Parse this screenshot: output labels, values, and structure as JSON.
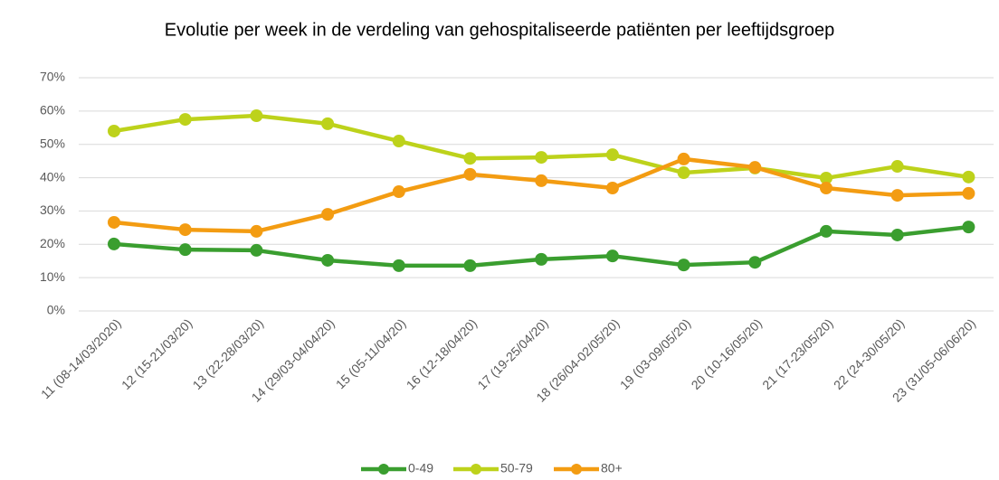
{
  "chart_data": {
    "type": "line",
    "title": "Evolutie per week in de verdeling van gehospitaliseerde patiënten per leeftijdsgroep",
    "categories": [
      "11 (08-14/03/2020)",
      "12 (15-21/03/20)",
      "13 (22-28/03/20)",
      "14 (29/03-04/04/20)",
      "15 (05-11/04/20)",
      "16 (12-18/04/20)",
      "17 (19-25/04/20)",
      "18 (26/04-02/05/20)",
      "19 (03-09/05/20)",
      "20 (10-16/05/20)",
      "21 (17-23/05/20)",
      "22 (24-30/05/20)",
      "23 (31/05-06/06/20)"
    ],
    "series": [
      {
        "name": "0-49",
        "color": "#3a9e2f",
        "values": [
          20.1,
          18.4,
          18.2,
          15.2,
          13.6,
          13.6,
          15.5,
          16.5,
          13.8,
          14.6,
          23.9,
          22.8,
          25.2
        ]
      },
      {
        "name": "50-79",
        "color": "#bdd21b",
        "values": [
          54,
          57.5,
          58.6,
          56.2,
          51,
          45.8,
          46.1,
          46.9,
          41.5,
          42.9,
          39.9,
          43.4,
          40.2
        ]
      },
      {
        "name": "80+",
        "color": "#f39c12",
        "values": [
          26.6,
          24.4,
          23.9,
          29,
          35.8,
          41,
          39.1,
          36.9,
          45.6,
          43.1,
          36.9,
          34.7,
          35.3
        ]
      }
    ],
    "ylim": [
      0,
      70
    ],
    "yticks": [
      {
        "value": 0,
        "label": "0%"
      },
      {
        "value": 10,
        "label": "10%"
      },
      {
        "value": 20,
        "label": "20%"
      },
      {
        "value": 30,
        "label": "30%"
      },
      {
        "value": 40,
        "label": "40%"
      },
      {
        "value": 50,
        "label": "50%"
      },
      {
        "value": 60,
        "label": "60%"
      },
      {
        "value": 70,
        "label": "70%"
      }
    ],
    "grid": true,
    "legend": "bottom"
  }
}
